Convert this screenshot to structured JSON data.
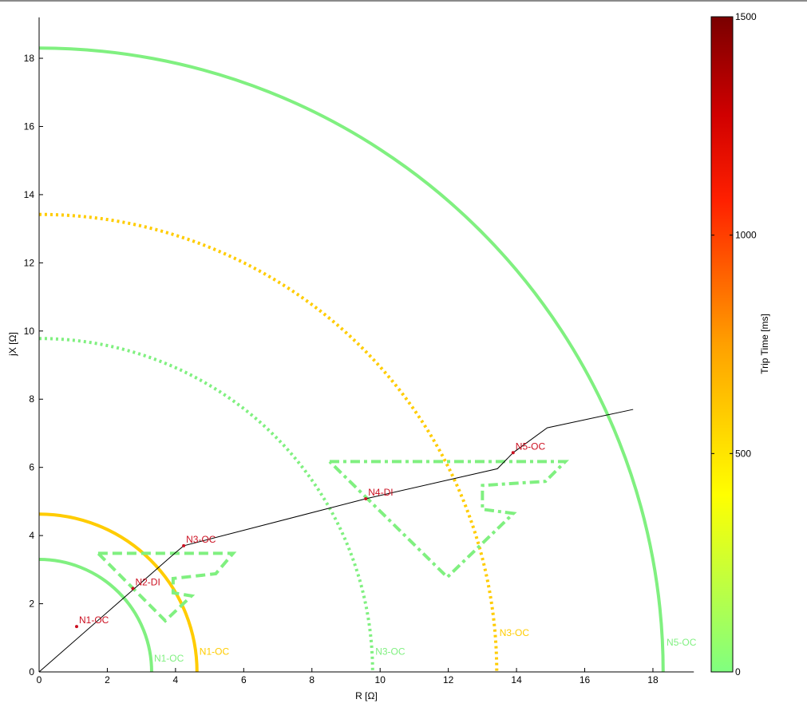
{
  "chart_data": {
    "type": "line",
    "xlabel": "R [Ω]",
    "ylabel": "jX [Ω]",
    "xlim": [
      0,
      19.2
    ],
    "ylim": [
      0,
      19.2
    ],
    "xticks": [
      0,
      2,
      4,
      6,
      8,
      10,
      12,
      14,
      16,
      18
    ],
    "yticks": [
      0,
      2,
      4,
      6,
      8,
      10,
      12,
      14,
      16,
      18
    ],
    "grid": false,
    "impedance_path": {
      "color": "#000000",
      "points": [
        [
          0,
          0
        ],
        [
          4.0,
          3.5
        ],
        [
          4.24,
          3.7
        ],
        [
          9.58,
          5.08
        ],
        [
          13.44,
          5.96
        ],
        [
          13.9,
          6.43
        ],
        [
          14.9,
          7.16
        ],
        [
          17.42,
          7.7
        ]
      ]
    },
    "markers": [
      {
        "label": "N1-OC",
        "x": 1.1,
        "y": 1.33
      },
      {
        "label": "N2-DI",
        "x": 2.75,
        "y": 2.45
      },
      {
        "label": "N3-OC",
        "x": 4.24,
        "y": 3.7
      },
      {
        "label": "N4-DI",
        "x": 9.58,
        "y": 5.08
      },
      {
        "label": "N5-OC",
        "x": 13.9,
        "y": 6.43
      }
    ],
    "marker_color": "#cc1122",
    "circles": [
      {
        "label": "N1-OC",
        "radius": 3.3,
        "color": "#80f080",
        "style": "solid",
        "label_x": 3.37,
        "label_y": 0.3
      },
      {
        "label": "N1-OC",
        "radius": 4.63,
        "color": "#ffcc00",
        "style": "solid",
        "label_x": 4.7,
        "label_y": 0.5
      },
      {
        "label": "N3-OC",
        "radius": 9.78,
        "color": "#80f080",
        "style": "dotted",
        "label_x": 9.86,
        "label_y": 0.5
      },
      {
        "label": "N3-OC",
        "radius": 13.42,
        "color": "#ffcc00",
        "style": "dotted",
        "label_x": 13.5,
        "label_y": 1.05
      },
      {
        "label": "N5-OC",
        "radius": 18.3,
        "color": "#80f080",
        "style": "solid",
        "label_x": 18.4,
        "label_y": 0.77
      }
    ],
    "polygons": [
      {
        "zone": "N2-DI",
        "color": "#80f080",
        "style": "dashed",
        "points": [
          [
            1.73,
            3.48
          ],
          [
            5.69,
            3.48
          ],
          [
            5.18,
            2.88
          ],
          [
            3.93,
            2.74
          ],
          [
            3.93,
            2.32
          ],
          [
            4.47,
            2.23
          ],
          [
            3.7,
            1.5
          ],
          [
            1.73,
            3.48
          ]
        ]
      },
      {
        "zone": "N4-DI",
        "color": "#80f080",
        "style": "dashdot",
        "points": [
          [
            8.52,
            6.17
          ],
          [
            15.43,
            6.17
          ],
          [
            14.85,
            5.59
          ],
          [
            13.0,
            5.47
          ],
          [
            13.0,
            4.77
          ],
          [
            13.91,
            4.65
          ],
          [
            11.97,
            2.78
          ],
          [
            8.52,
            6.17
          ]
        ]
      }
    ],
    "colorbar": {
      "label": "Trip Time [ms]",
      "range": [
        0,
        1500
      ],
      "ticks": [
        0,
        500,
        1000,
        1500
      ],
      "colormap": [
        [
          "0",
          "#80ff80"
        ],
        [
          "0.27",
          "#ffff00"
        ],
        [
          "0.5",
          "#ffa000"
        ],
        [
          "0.72",
          "#ff2000"
        ],
        [
          "0.85",
          "#d00000"
        ],
        [
          "1",
          "#7a0000"
        ]
      ]
    }
  }
}
